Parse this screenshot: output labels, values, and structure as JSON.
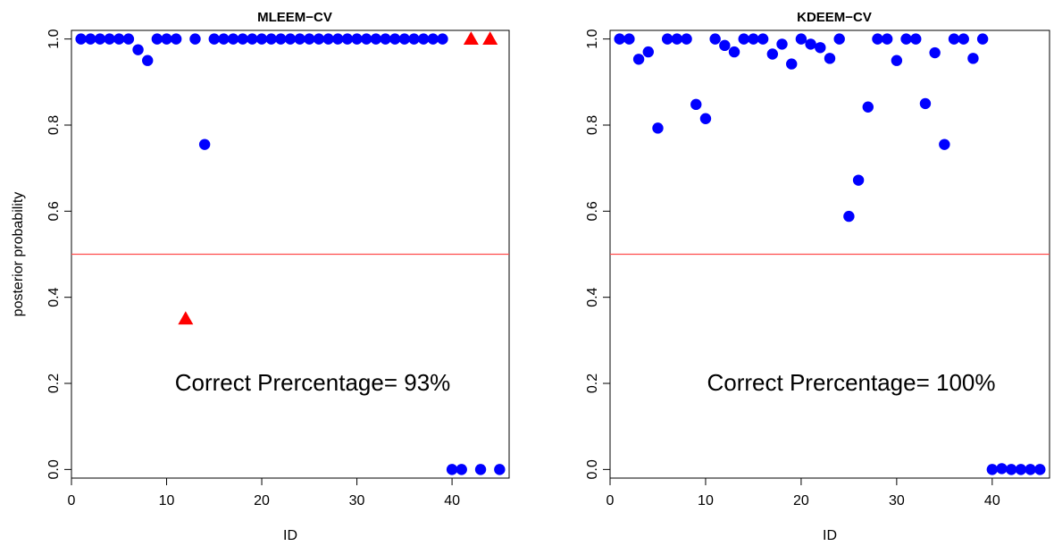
{
  "chart_data": [
    {
      "type": "scatter",
      "title": "MLEEM−CV",
      "xlabel": "ID",
      "ylabel": "posterior probability",
      "xlim": [
        0,
        46
      ],
      "ylim": [
        -0.02,
        1.02
      ],
      "xticks": [
        0,
        10,
        20,
        30,
        40
      ],
      "yticks": [
        0.0,
        0.2,
        0.4,
        0.6,
        0.8,
        1.0
      ],
      "xtick_labels": [
        "0",
        "10",
        "20",
        "30",
        "40"
      ],
      "ytick_labels": [
        "0.0",
        "0.2",
        "0.4",
        "0.6",
        "0.8",
        "1.0"
      ],
      "threshold": 0.5,
      "threshold_color": "#ff4d4d",
      "annotation": "Correct Prercentage= 93%",
      "series": [
        {
          "marker": "circle",
          "color": "#0000ff",
          "x": [
            1,
            2,
            3,
            4,
            5,
            6,
            7,
            8,
            9,
            10,
            11,
            13,
            14,
            15,
            16,
            17,
            18,
            19,
            20,
            21,
            22,
            23,
            24,
            25,
            26,
            27,
            28,
            29,
            30,
            31,
            32,
            33,
            34,
            35,
            36,
            37,
            38,
            39,
            40,
            41,
            43,
            45
          ],
          "y": [
            1.0,
            1.0,
            1.0,
            1.0,
            1.0,
            1.0,
            0.975,
            0.95,
            1.0,
            1.0,
            1.0,
            1.0,
            0.755,
            1.0,
            1.0,
            1.0,
            1.0,
            1.0,
            1.0,
            1.0,
            1.0,
            1.0,
            1.0,
            1.0,
            1.0,
            1.0,
            1.0,
            1.0,
            1.0,
            1.0,
            1.0,
            1.0,
            1.0,
            1.0,
            1.0,
            1.0,
            1.0,
            1.0,
            0.0,
            0.0,
            0.0,
            0.0
          ]
        },
        {
          "marker": "triangle",
          "color": "#ff0000",
          "x": [
            12,
            42,
            44
          ],
          "y": [
            0.35,
            1.0,
            1.0
          ]
        }
      ]
    },
    {
      "type": "scatter",
      "title": "KDEEM−CV",
      "xlabel": "ID",
      "ylabel": "",
      "xlim": [
        0,
        46
      ],
      "ylim": [
        -0.02,
        1.02
      ],
      "xticks": [
        0,
        10,
        20,
        30,
        40
      ],
      "yticks": [
        0.0,
        0.2,
        0.4,
        0.6,
        0.8,
        1.0
      ],
      "xtick_labels": [
        "0",
        "10",
        "20",
        "30",
        "40"
      ],
      "ytick_labels": [
        "0.0",
        "0.2",
        "0.4",
        "0.6",
        "0.8",
        "1.0"
      ],
      "threshold": 0.5,
      "threshold_color": "#ff4d4d",
      "annotation": "Correct Prercentage= 100%",
      "series": [
        {
          "marker": "circle",
          "color": "#0000ff",
          "x": [
            1,
            2,
            3,
            4,
            5,
            6,
            7,
            8,
            9,
            10,
            11,
            12,
            13,
            14,
            15,
            16,
            17,
            18,
            19,
            20,
            21,
            22,
            23,
            24,
            25,
            26,
            27,
            28,
            29,
            30,
            31,
            32,
            33,
            34,
            35,
            36,
            37,
            38,
            39,
            40,
            41,
            42,
            43,
            44,
            45
          ],
          "y": [
            1.0,
            1.0,
            0.953,
            0.97,
            0.793,
            1.0,
            1.0,
            1.0,
            0.848,
            0.815,
            1.0,
            0.985,
            0.97,
            1.0,
            1.0,
            1.0,
            0.965,
            0.988,
            0.942,
            1.0,
            0.988,
            0.98,
            0.955,
            1.0,
            0.588,
            0.672,
            0.842,
            1.0,
            1.0,
            0.95,
            1.0,
            1.0,
            0.85,
            0.968,
            0.755,
            1.0,
            1.0,
            0.955,
            1.0,
            0.0,
            0.002,
            0.0,
            0.0,
            0.0,
            0.0
          ]
        }
      ]
    }
  ]
}
